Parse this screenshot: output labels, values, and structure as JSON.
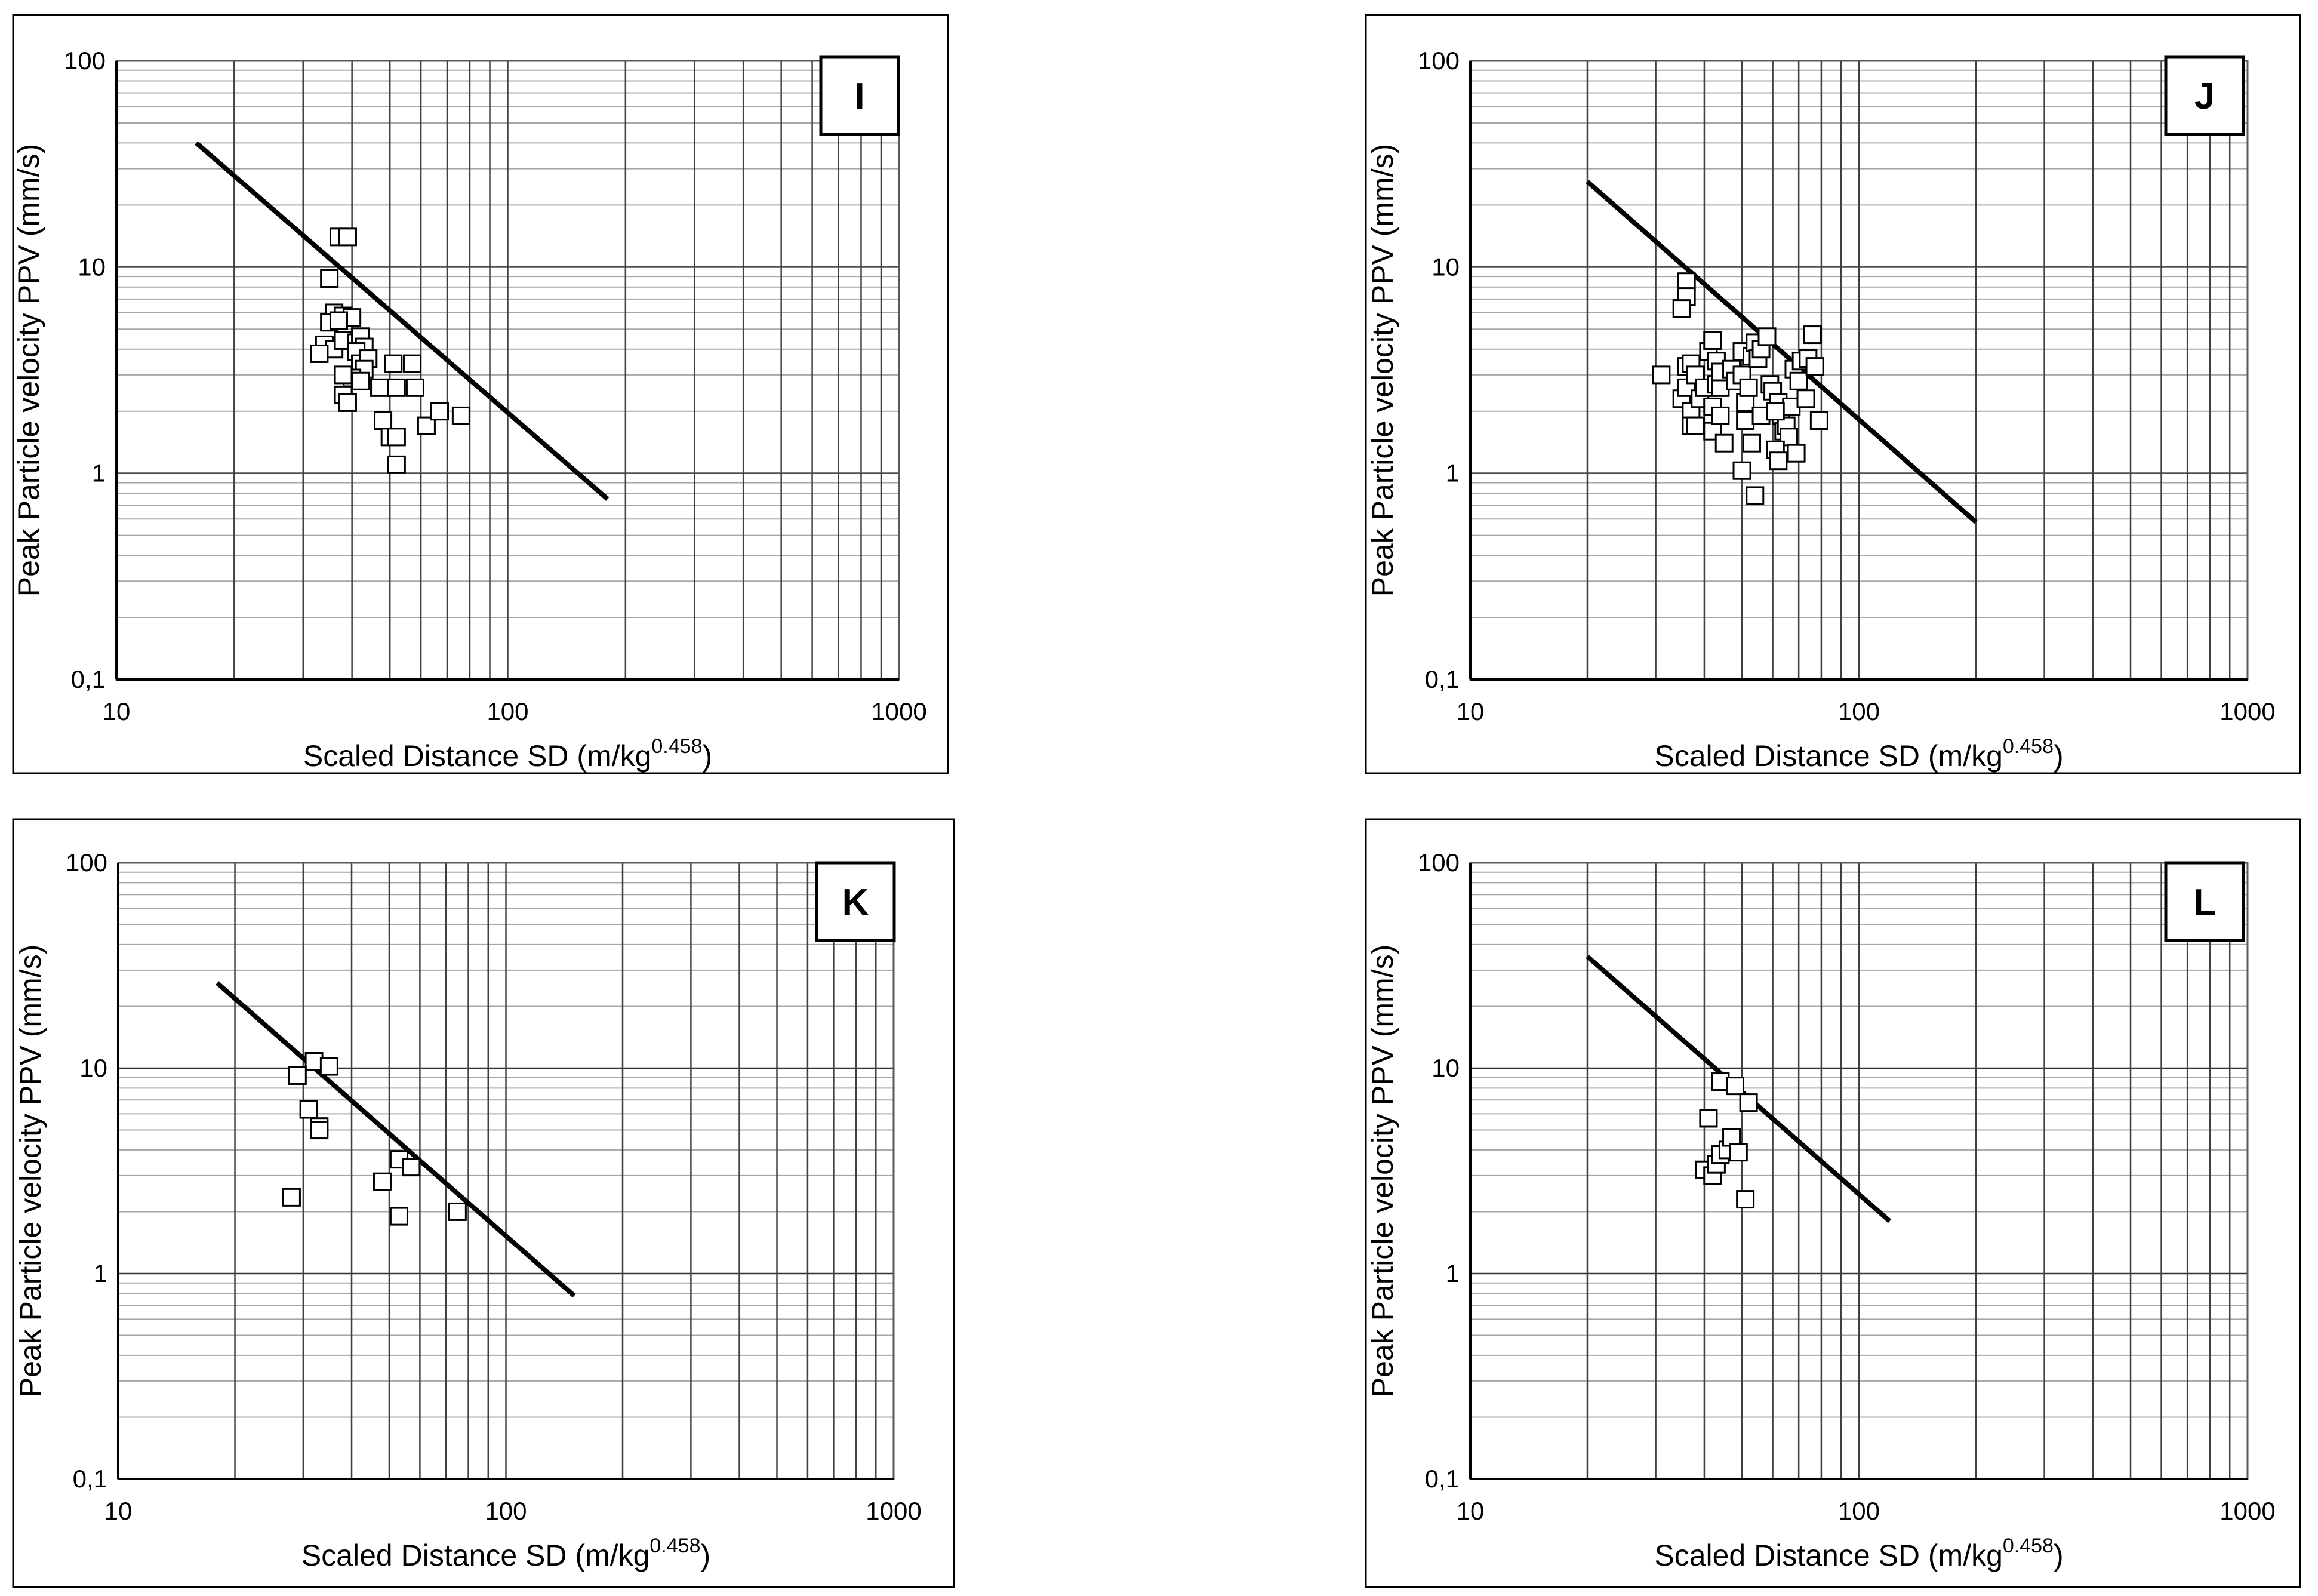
{
  "axes": {
    "xlabel": "Scaled Distance SD (m/kg",
    "xlabel_exponent": "0.458",
    "xlabel_suffix": ")",
    "ylabel": "Peak Particle velocity PPV (mm/s)",
    "xticks": [
      "10",
      "100",
      "1000"
    ],
    "yticks": [
      "0,1",
      "1",
      "10",
      "100"
    ]
  },
  "chart_data": [
    {
      "type": "scatter",
      "panel_label": "I",
      "xlabel": "Scaled Distance SD (m/kg^0.458)",
      "ylabel": "Peak Particle velocity PPV (mm/s)",
      "xscale": "log",
      "yscale": "log",
      "xlim": [
        10,
        1000
      ],
      "ylim": [
        0.1,
        100
      ],
      "grid": true,
      "fit_line": [
        [
          16,
          40
        ],
        [
          180,
          0.75
        ]
      ],
      "points": [
        [
          37,
          14
        ],
        [
          39,
          14
        ],
        [
          35,
          8.8
        ],
        [
          36,
          6
        ],
        [
          38,
          5.8
        ],
        [
          40,
          5.7
        ],
        [
          35,
          5.4
        ],
        [
          37,
          5.5
        ],
        [
          34,
          4.2
        ],
        [
          36,
          4.0
        ],
        [
          33,
          3.8
        ],
        [
          38,
          4.4
        ],
        [
          41,
          4.3
        ],
        [
          42,
          4.6
        ],
        [
          43,
          4.1
        ],
        [
          41,
          3.9
        ],
        [
          42,
          3.4
        ],
        [
          44,
          3.6
        ],
        [
          43,
          3.2
        ],
        [
          40,
          2.9
        ],
        [
          42,
          2.8
        ],
        [
          38,
          3.0
        ],
        [
          38,
          2.4
        ],
        [
          39,
          2.2
        ],
        [
          47,
          2.6
        ],
        [
          51,
          3.4
        ],
        [
          52,
          2.6
        ],
        [
          57,
          3.4
        ],
        [
          58,
          2.6
        ],
        [
          48,
          1.8
        ],
        [
          50,
          1.5
        ],
        [
          52,
          1.5
        ],
        [
          52,
          1.1
        ],
        [
          62,
          1.7
        ],
        [
          67,
          2.0
        ],
        [
          76,
          1.9
        ]
      ]
    },
    {
      "type": "scatter",
      "panel_label": "J",
      "xlabel": "Scaled Distance SD (m/kg^0.458)",
      "ylabel": "Peak Particle velocity PPV (mm/s)",
      "xscale": "log",
      "yscale": "log",
      "xlim": [
        10,
        1000
      ],
      "ylim": [
        0.1,
        100
      ],
      "grid": true,
      "fit_line": [
        [
          20,
          26
        ],
        [
          200,
          0.58
        ]
      ],
      "points": [
        [
          36,
          8.5
        ],
        [
          36,
          7.2
        ],
        [
          35,
          6.3
        ],
        [
          31,
          3.0
        ],
        [
          35,
          2.3
        ],
        [
          36,
          2.6
        ],
        [
          36,
          3.3
        ],
        [
          37,
          3.4
        ],
        [
          38,
          3.0
        ],
        [
          37,
          2.0
        ],
        [
          37,
          1.7
        ],
        [
          38,
          1.7
        ],
        [
          39,
          2.3
        ],
        [
          40,
          2.6
        ],
        [
          41,
          3.9
        ],
        [
          42,
          4.4
        ],
        [
          43,
          3.5
        ],
        [
          43,
          2.7
        ],
        [
          44,
          2.6
        ],
        [
          44,
          3.1
        ],
        [
          42,
          2.1
        ],
        [
          42,
          1.6
        ],
        [
          44,
          1.9
        ],
        [
          45,
          1.4
        ],
        [
          47,
          3.2
        ],
        [
          48,
          2.8
        ],
        [
          50,
          3.9
        ],
        [
          50,
          3.0
        ],
        [
          51,
          2.2
        ],
        [
          51,
          1.8
        ],
        [
          52,
          2.6
        ],
        [
          53,
          3.7
        ],
        [
          54,
          4.3
        ],
        [
          55,
          3.6
        ],
        [
          56,
          4.0
        ],
        [
          58,
          4.6
        ],
        [
          59,
          2.7
        ],
        [
          60,
          2.5
        ],
        [
          62,
          2.2
        ],
        [
          63,
          1.9
        ],
        [
          64,
          1.6
        ],
        [
          65,
          1.7
        ],
        [
          66,
          1.5
        ],
        [
          67,
          2.1
        ],
        [
          68,
          3.2
        ],
        [
          70,
          2.8
        ],
        [
          71,
          3.5
        ],
        [
          73,
          2.3
        ],
        [
          74,
          3.6
        ],
        [
          76,
          4.7
        ],
        [
          77,
          3.3
        ],
        [
          79,
          1.8
        ],
        [
          53,
          1.4
        ],
        [
          54,
          0.78
        ],
        [
          56,
          1.9
        ],
        [
          61,
          1.3
        ],
        [
          62,
          1.15
        ],
        [
          69,
          1.25
        ],
        [
          50,
          1.03
        ],
        [
          61,
          2.0
        ]
      ]
    },
    {
      "type": "scatter",
      "panel_label": "K",
      "xlabel": "Scaled Distance SD (m/kg^0.458)",
      "ylabel": "Peak Particle velocity PPV (mm/s)",
      "xscale": "log",
      "yscale": "log",
      "xlim": [
        10,
        1000
      ],
      "ylim": [
        0.1,
        100
      ],
      "grid": true,
      "fit_line": [
        [
          18,
          26
        ],
        [
          150,
          0.78
        ]
      ],
      "points": [
        [
          32,
          10.8
        ],
        [
          35,
          10.2
        ],
        [
          29,
          9.2
        ],
        [
          31,
          6.3
        ],
        [
          33,
          5.2
        ],
        [
          33,
          5.0
        ],
        [
          28,
          2.35
        ],
        [
          48,
          2.8
        ],
        [
          53,
          3.6
        ],
        [
          57,
          3.3
        ],
        [
          53,
          1.9
        ],
        [
          75,
          2.0
        ]
      ]
    },
    {
      "type": "scatter",
      "panel_label": "L",
      "xlabel": "Scaled Distance SD (m/kg^0.458)",
      "ylabel": "Peak Particle velocity PPV (mm/s)",
      "xscale": "log",
      "yscale": "log",
      "xlim": [
        10,
        1000
      ],
      "ylim": [
        0.1,
        100
      ],
      "grid": true,
      "fit_line": [
        [
          20,
          35
        ],
        [
          120,
          1.8
        ]
      ],
      "points": [
        [
          44,
          8.6
        ],
        [
          48,
          8.2
        ],
        [
          52,
          6.8
        ],
        [
          41,
          5.7
        ],
        [
          40,
          3.2
        ],
        [
          42,
          3.0
        ],
        [
          43,
          3.4
        ],
        [
          44,
          3.8
        ],
        [
          46,
          4.0
        ],
        [
          47,
          4.6
        ],
        [
          49,
          3.9
        ],
        [
          51,
          2.3
        ]
      ]
    }
  ]
}
